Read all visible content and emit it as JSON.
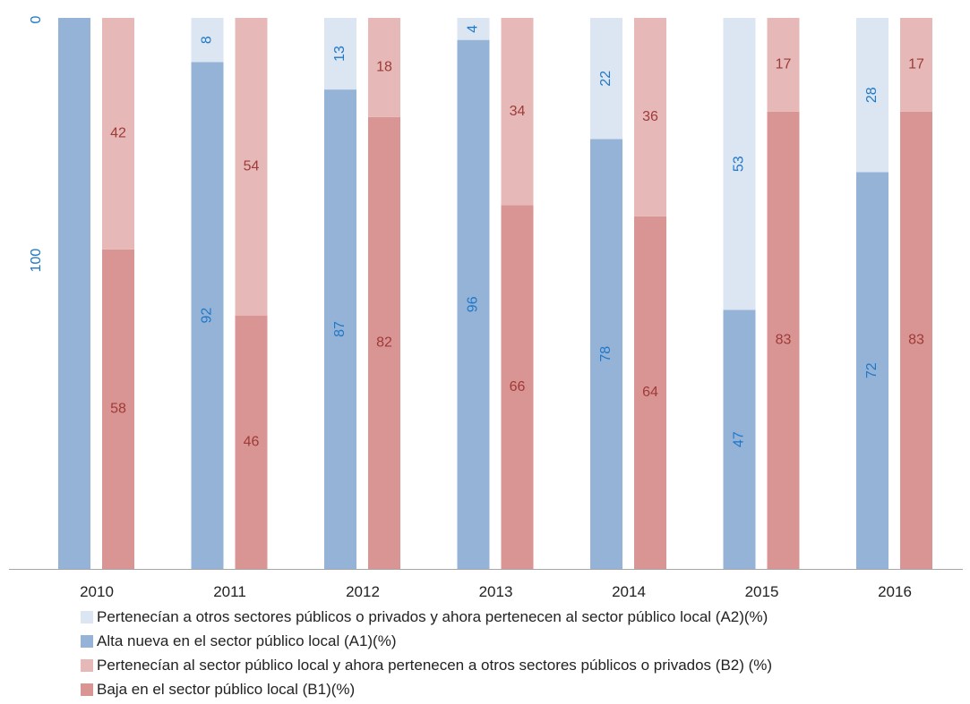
{
  "chart_data": {
    "type": "bar",
    "stacked": true,
    "categories": [
      "2010",
      "2011",
      "2012",
      "2013",
      "2014",
      "2015",
      "2016"
    ],
    "ylim": [
      0,
      100
    ],
    "y_axis_labels": [
      "0",
      "100"
    ],
    "series": [
      {
        "name": "Alta nueva en el sector público local (A1)(%)",
        "group": "A",
        "color": "#95b3d7",
        "label_color": "#1f78c8",
        "values": [
          100,
          92,
          87,
          96,
          78,
          47,
          72
        ],
        "labels": [
          "",
          "92",
          "87",
          "96",
          "78",
          "47",
          "72"
        ]
      },
      {
        "name": "Pertenecían a otros sectores públicos o privados y ahora pertenecen al sector público local (A2)(%)",
        "group": "A",
        "color": "#dce6f2",
        "label_color": "#1f78c8",
        "values": [
          0,
          8,
          13,
          4,
          22,
          53,
          28
        ],
        "labels": [
          "",
          "8",
          "13",
          "4",
          "22",
          "53",
          "28"
        ]
      },
      {
        "name": "Baja en el sector público local (B1)(%)",
        "group": "B",
        "color": "#d99594",
        "label_color": "#9e3a37",
        "values": [
          58,
          46,
          82,
          66,
          64,
          83,
          83
        ],
        "labels": [
          "58",
          "46",
          "82",
          "66",
          "64",
          "83",
          "83"
        ]
      },
      {
        "name": "Pertenecían al sector público local y ahora pertenecen a otros sectores públicos o privados (B2) (%)",
        "group": "B",
        "color": "#e6b9b8",
        "label_color": "#9e3a37",
        "values": [
          42,
          54,
          18,
          34,
          36,
          17,
          17
        ],
        "labels": [
          "42",
          "54",
          "18",
          "34",
          "36",
          "17",
          "17"
        ]
      }
    ],
    "legend": [
      {
        "label": "Pertenecían a otros sectores públicos o privados y ahora pertenecen al sector público local (A2)(%)",
        "color": "#dce6f2"
      },
      {
        "label": "Alta nueva en el sector público local (A1)(%)",
        "color": "#95b3d7"
      },
      {
        "label": "Pertenecían al sector público local y ahora pertenecen a otros sectores públicos o privados (B2) (%)",
        "color": "#e6b9b8"
      },
      {
        "label": "Baja en el sector público local (B1)(%)",
        "color": "#d99594"
      }
    ],
    "legend_position": "bottom"
  }
}
